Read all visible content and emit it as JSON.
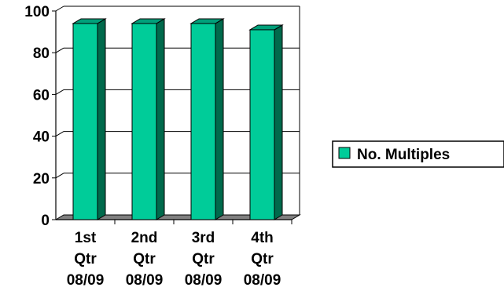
{
  "chart_data": {
    "type": "bar",
    "categories": [
      [
        "1st",
        "Qtr",
        "08/09"
      ],
      [
        "2nd",
        "Qtr",
        "08/09"
      ],
      [
        "3rd",
        "Qtr",
        "08/09"
      ],
      [
        "4th",
        "Qtr",
        "08/09"
      ]
    ],
    "series": [
      {
        "name": "No. Multiples",
        "values": [
          94,
          94,
          94,
          91
        ]
      }
    ],
    "yticks": [
      "0",
      "20",
      "40",
      "60",
      "80",
      "100"
    ],
    "ylim": [
      0,
      100
    ],
    "grid": true,
    "three_d": true,
    "legend_position": "right",
    "colors": {
      "bar_front": "#00cc99",
      "bar_side": "#006a4c",
      "bar_top": "#00a07a",
      "floor": "#808080",
      "gridline": "#000000"
    }
  }
}
